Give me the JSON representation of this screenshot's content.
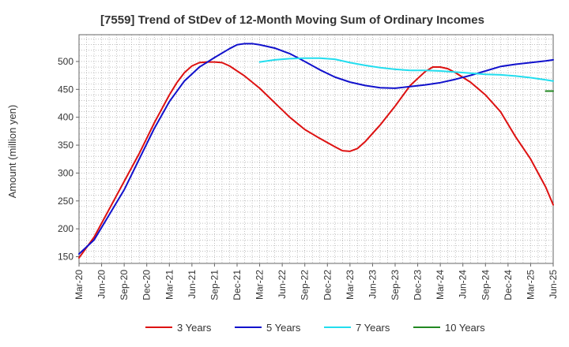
{
  "chart_data": {
    "type": "line",
    "title": "[7559]  Trend of StDev of 12-Month Moving Sum of Ordinary Incomes",
    "xlabel": "",
    "ylabel": "Amount (million yen)",
    "ylim": [
      138,
      548
    ],
    "yticks": [
      150,
      200,
      250,
      300,
      350,
      400,
      450,
      500
    ],
    "xlim": [
      0,
      60
    ],
    "xticks": [
      {
        "label": "Mar-20",
        "i": 0
      },
      {
        "label": "Jun-20",
        "i": 3
      },
      {
        "label": "Sep-20",
        "i": 6
      },
      {
        "label": "Dec-20",
        "i": 9
      },
      {
        "label": "Mar-21",
        "i": 12
      },
      {
        "label": "Jun-21",
        "i": 15
      },
      {
        "label": "Sep-21",
        "i": 18
      },
      {
        "label": "Dec-21",
        "i": 21
      },
      {
        "label": "Mar-22",
        "i": 24
      },
      {
        "label": "Jun-22",
        "i": 27
      },
      {
        "label": "Sep-22",
        "i": 30
      },
      {
        "label": "Dec-22",
        "i": 33
      },
      {
        "label": "Mar-23",
        "i": 36
      },
      {
        "label": "Jun-23",
        "i": 39
      },
      {
        "label": "Sep-23",
        "i": 42
      },
      {
        "label": "Dec-23",
        "i": 45
      },
      {
        "label": "Mar-24",
        "i": 48
      },
      {
        "label": "Jun-24",
        "i": 51
      },
      {
        "label": "Sep-24",
        "i": 54
      },
      {
        "label": "Dec-24",
        "i": 57
      },
      {
        "label": "Mar-25",
        "i": 60
      },
      {
        "label": "Jun-25",
        "i": 63
      }
    ],
    "series": [
      {
        "name": "3 Years",
        "color": "#dd1111",
        "points": [
          [
            0,
            148
          ],
          [
            2,
            185
          ],
          [
            4,
            235
          ],
          [
            6,
            285
          ],
          [
            8,
            335
          ],
          [
            10,
            390
          ],
          [
            12,
            440
          ],
          [
            13,
            462
          ],
          [
            14,
            480
          ],
          [
            15,
            492
          ],
          [
            16,
            498
          ],
          [
            17,
            499
          ],
          [
            18,
            499
          ],
          [
            19,
            498
          ],
          [
            20,
            492
          ],
          [
            22,
            474
          ],
          [
            24,
            452
          ],
          [
            26,
            426
          ],
          [
            28,
            400
          ],
          [
            30,
            378
          ],
          [
            32,
            362
          ],
          [
            34,
            347
          ],
          [
            35,
            340
          ],
          [
            36,
            339
          ],
          [
            37,
            344
          ],
          [
            38,
            356
          ],
          [
            40,
            386
          ],
          [
            42,
            420
          ],
          [
            44,
            457
          ],
          [
            46,
            482
          ],
          [
            47,
            490
          ],
          [
            48,
            490
          ],
          [
            49,
            487
          ],
          [
            50,
            480
          ],
          [
            52,
            463
          ],
          [
            54,
            440
          ],
          [
            56,
            410
          ],
          [
            58,
            365
          ],
          [
            60,
            325
          ],
          [
            62,
            275
          ],
          [
            63,
            243
          ]
        ]
      },
      {
        "name": "5 Years",
        "color": "#1111cc",
        "points": [
          [
            0,
            155
          ],
          [
            2,
            180
          ],
          [
            4,
            225
          ],
          [
            6,
            270
          ],
          [
            8,
            325
          ],
          [
            10,
            380
          ],
          [
            12,
            428
          ],
          [
            14,
            465
          ],
          [
            16,
            490
          ],
          [
            18,
            507
          ],
          [
            20,
            523
          ],
          [
            21,
            530
          ],
          [
            22,
            532
          ],
          [
            23,
            532
          ],
          [
            24,
            530
          ],
          [
            26,
            524
          ],
          [
            28,
            514
          ],
          [
            30,
            500
          ],
          [
            32,
            485
          ],
          [
            34,
            472
          ],
          [
            36,
            463
          ],
          [
            38,
            457
          ],
          [
            40,
            453
          ],
          [
            42,
            452
          ],
          [
            44,
            455
          ],
          [
            46,
            458
          ],
          [
            48,
            462
          ],
          [
            50,
            468
          ],
          [
            52,
            475
          ],
          [
            54,
            483
          ],
          [
            56,
            491
          ],
          [
            58,
            495
          ],
          [
            60,
            498
          ],
          [
            62,
            501
          ],
          [
            63,
            503
          ]
        ]
      },
      {
        "name": "7 Years",
        "color": "#22ddee",
        "points": [
          [
            24,
            499
          ],
          [
            26,
            503
          ],
          [
            28,
            505
          ],
          [
            30,
            506
          ],
          [
            32,
            506
          ],
          [
            34,
            504
          ],
          [
            36,
            498
          ],
          [
            38,
            493
          ],
          [
            40,
            489
          ],
          [
            42,
            486
          ],
          [
            44,
            484
          ],
          [
            46,
            484
          ],
          [
            48,
            483
          ],
          [
            50,
            481
          ],
          [
            52,
            479
          ],
          [
            54,
            477
          ],
          [
            56,
            476
          ],
          [
            58,
            474
          ],
          [
            60,
            471
          ],
          [
            62,
            467
          ],
          [
            63,
            465
          ]
        ]
      },
      {
        "name": "10 Years",
        "color": "#228822",
        "points": [
          [
            62,
            447
          ],
          [
            63,
            447
          ]
        ]
      }
    ],
    "legend_position": "bottom",
    "grid": true
  }
}
